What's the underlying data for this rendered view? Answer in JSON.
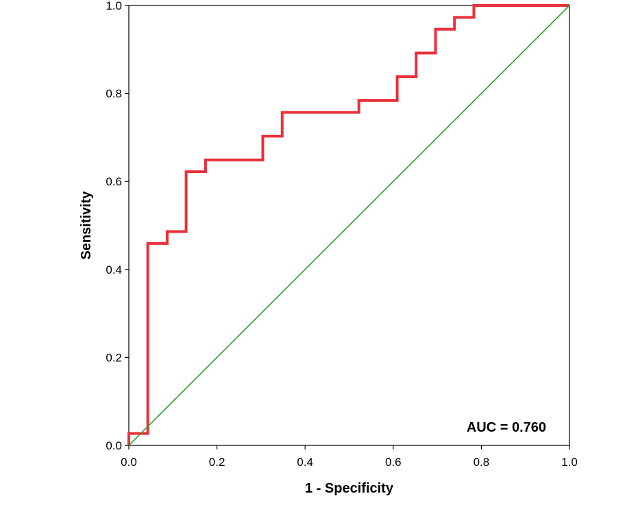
{
  "chart_data": {
    "type": "line",
    "title": "",
    "xlabel": "1 - Specificity",
    "ylabel": "Sensitivity",
    "xlim": [
      0,
      1
    ],
    "ylim": [
      0,
      1
    ],
    "xticks": [
      "0.0",
      "0.2",
      "0.4",
      "0.6",
      "0.8",
      "1.0"
    ],
    "yticks": [
      "0.0",
      "0.2",
      "0.4",
      "0.6",
      "0.8",
      "1.0"
    ],
    "grid": false,
    "legend": "none",
    "annotation": "AUC = 0.760",
    "series": [
      {
        "color": "#e8313a",
        "step": true,
        "x": [
          0,
          0,
          0.043,
          0.043,
          0.087,
          0.087,
          0.13,
          0.13,
          0.174,
          0.174,
          0.304,
          0.304,
          0.348,
          0.348,
          0.522,
          0.522,
          0.609,
          0.609,
          0.652,
          0.652,
          0.696,
          0.696,
          0.739,
          0.739,
          0.783,
          0.783,
          1.0
        ],
        "y": [
          0,
          0.027,
          0.027,
          0.459,
          0.459,
          0.486,
          0.486,
          0.622,
          0.622,
          0.649,
          0.649,
          0.703,
          0.703,
          0.757,
          0.757,
          0.784,
          0.784,
          0.838,
          0.838,
          0.892,
          0.892,
          0.946,
          0.946,
          0.973,
          0.973,
          1.0,
          1.0
        ]
      },
      {
        "color": "#2ca02c",
        "step": false,
        "x": [
          0,
          1
        ],
        "y": [
          0,
          1
        ]
      }
    ]
  }
}
